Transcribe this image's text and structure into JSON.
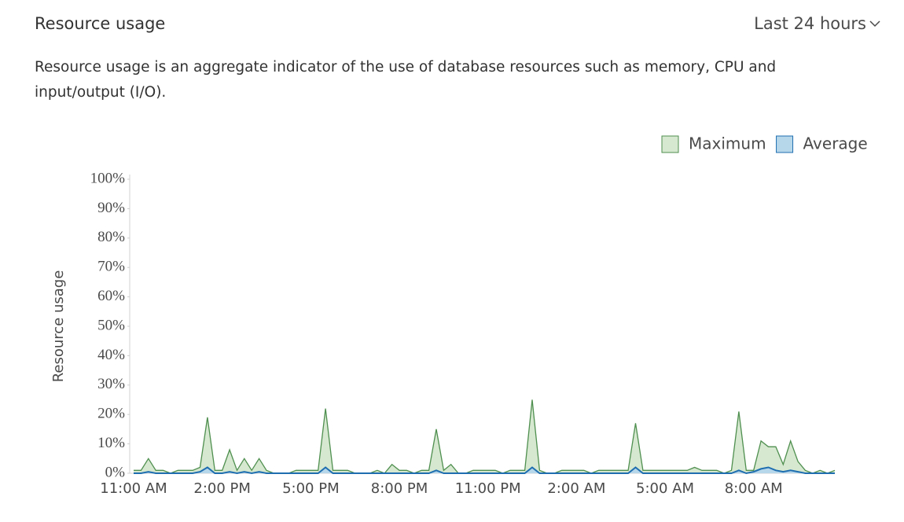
{
  "header": {
    "title": "Resource usage",
    "time_range": "Last 24 hours"
  },
  "description": "Resource usage is an aggregate indicator of the use of database resources such as memory, CPU and input/output (I/O).",
  "chart_data": {
    "type": "area",
    "y_label": "Resource usage",
    "categories": [
      "11:00 AM",
      null,
      null,
      null,
      null,
      null,
      null,
      null,
      null,
      null,
      null,
      null,
      "2:00 PM",
      null,
      null,
      null,
      null,
      null,
      null,
      null,
      null,
      null,
      null,
      null,
      "5:00 PM",
      null,
      null,
      null,
      null,
      null,
      null,
      null,
      null,
      null,
      null,
      null,
      "8:00 PM",
      null,
      null,
      null,
      null,
      null,
      null,
      null,
      null,
      null,
      null,
      null,
      "11:00 PM",
      null,
      null,
      null,
      null,
      null,
      null,
      null,
      null,
      null,
      null,
      null,
      "2:00 AM",
      null,
      null,
      null,
      null,
      null,
      null,
      null,
      null,
      null,
      null,
      null,
      "5:00 AM",
      null,
      null,
      null,
      null,
      null,
      null,
      null,
      null,
      null,
      null,
      null,
      "8:00 AM",
      null,
      null,
      null,
      null,
      null,
      null,
      null,
      null,
      null,
      null,
      null
    ],
    "series": [
      {
        "name": "Maximum",
        "color": "#4f8f4f",
        "fill": "#d6e8d0",
        "values": [
          1,
          1,
          5,
          1,
          1,
          0,
          1,
          1,
          1,
          2,
          19,
          1,
          1,
          8,
          1,
          5,
          1,
          5,
          1,
          0,
          0,
          0,
          1,
          1,
          1,
          1,
          22,
          1,
          1,
          1,
          0,
          0,
          0,
          1,
          0,
          3,
          1,
          1,
          0,
          1,
          1,
          15,
          1,
          3,
          0,
          0,
          1,
          1,
          1,
          1,
          0,
          1,
          1,
          1,
          25,
          1,
          0,
          0,
          1,
          1,
          1,
          1,
          0,
          1,
          1,
          1,
          1,
          1,
          17,
          1,
          1,
          1,
          1,
          1,
          1,
          1,
          2,
          1,
          1,
          1,
          0,
          1,
          21,
          1,
          1,
          11,
          9,
          9,
          3,
          11,
          4,
          1,
          0,
          1,
          0,
          1
        ]
      },
      {
        "name": "Average",
        "color": "#1f6fb0",
        "fill": "#b6d6ea",
        "values": [
          0,
          0,
          0.5,
          0,
          0,
          0,
          0,
          0,
          0,
          0.5,
          2,
          0,
          0,
          0.5,
          0,
          0.5,
          0,
          0.5,
          0,
          0,
          0,
          0,
          0,
          0,
          0,
          0,
          2,
          0,
          0,
          0,
          0,
          0,
          0,
          0,
          0,
          0,
          0,
          0,
          0,
          0,
          0,
          1,
          0,
          0,
          0,
          0,
          0,
          0,
          0,
          0,
          0,
          0,
          0,
          0,
          2,
          0,
          0,
          0,
          0,
          0,
          0,
          0,
          0,
          0,
          0,
          0,
          0,
          0,
          2,
          0,
          0,
          0,
          0,
          0,
          0,
          0,
          0,
          0,
          0,
          0,
          0,
          0,
          1,
          0,
          0.5,
          1.5,
          2,
          1,
          0.5,
          1,
          0.5,
          0,
          0,
          0,
          0,
          0
        ]
      }
    ],
    "ylim": [
      0,
      100
    ],
    "yticks": [
      {
        "value": 0,
        "label": "0%"
      },
      {
        "value": 10,
        "label": "10%"
      },
      {
        "value": 20,
        "label": "20%"
      },
      {
        "value": 30,
        "label": "30%"
      },
      {
        "value": 40,
        "label": "40%"
      },
      {
        "value": 50,
        "label": "50%"
      },
      {
        "value": 60,
        "label": "60%"
      },
      {
        "value": 70,
        "label": "70%"
      },
      {
        "value": 80,
        "label": "80%"
      },
      {
        "value": 90,
        "label": "90%"
      },
      {
        "value": 100,
        "label": "100%"
      }
    ],
    "legend": "top-right"
  }
}
